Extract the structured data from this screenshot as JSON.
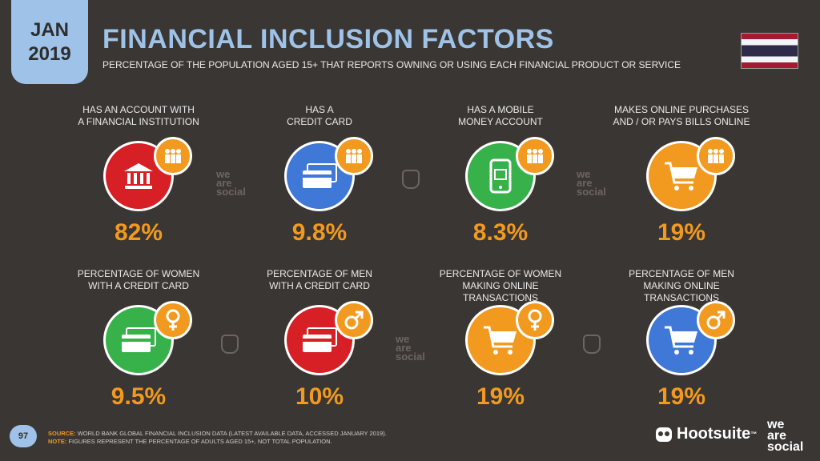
{
  "header": {
    "date_month": "JAN",
    "date_year": "2019",
    "title": "FINANCIAL INCLUSION FACTORS",
    "subtitle": "PERCENTAGE OF THE POPULATION AGED 15+ THAT REPORTS OWNING OR USING EACH FINANCIAL PRODUCT OR SERVICE",
    "flag": "thailand-flag"
  },
  "row1": [
    {
      "label1": "HAS AN ACCOUNT WITH",
      "label2": "A FINANCIAL INSTITUTION",
      "value": "82%",
      "icon": "bank-icon",
      "color": "#d71f26",
      "badge": "people-icon"
    },
    {
      "label1": "HAS A",
      "label2": "CREDIT CARD",
      "value": "9.8%",
      "icon": "credit-card-icon",
      "color": "#3f78d6",
      "badge": "people-icon"
    },
    {
      "label1": "HAS A MOBILE",
      "label2": "MONEY ACCOUNT",
      "value": "8.3%",
      "icon": "mobile-money-icon",
      "color": "#37b24a",
      "badge": "people-icon"
    },
    {
      "label1": "MAKES ONLINE PURCHASES",
      "label2": "AND / OR PAYS BILLS ONLINE",
      "value": "19%",
      "icon": "shopping-cart-icon",
      "color": "#f29a1f",
      "badge": "people-icon"
    }
  ],
  "row2": [
    {
      "label1": "PERCENTAGE OF WOMEN",
      "label2": "WITH A CREDIT CARD",
      "value": "9.5%",
      "icon": "credit-card-icon",
      "color": "#37b24a",
      "badge": "female-icon"
    },
    {
      "label1": "PERCENTAGE OF MEN",
      "label2": "WITH A CREDIT CARD",
      "value": "10%",
      "icon": "credit-card-icon",
      "color": "#d71f26",
      "badge": "male-icon"
    },
    {
      "label1": "PERCENTAGE OF WOMEN",
      "label2": "MAKING ONLINE TRANSACTIONS",
      "value": "19%",
      "icon": "shopping-cart-icon",
      "color": "#f29a1f",
      "badge": "female-icon"
    },
    {
      "label1": "PERCENTAGE OF MEN",
      "label2": "MAKING ONLINE TRANSACTIONS",
      "value": "19%",
      "icon": "shopping-cart-icon",
      "color": "#3f78d6",
      "badge": "male-icon"
    }
  ],
  "watermark": {
    "line1": "we",
    "line2": "are",
    "line3": "social"
  },
  "footer": {
    "page_number": "97",
    "source_label": "SOURCE:",
    "source_text": "WORLD BANK GLOBAL FINANCIAL INCLUSION DATA (LATEST AVAILABLE DATA, ACCESSED JANUARY 2019).",
    "note_label": "NOTE:",
    "note_text": "FIGURES REPRESENT THE PERCENTAGE OF ADULTS AGED 15+, NOT TOTAL POPULATION.",
    "hootsuite": "Hootsuite",
    "trademark": "™",
    "brand_line1": "we",
    "brand_line2": "are",
    "brand_line3": "social"
  }
}
